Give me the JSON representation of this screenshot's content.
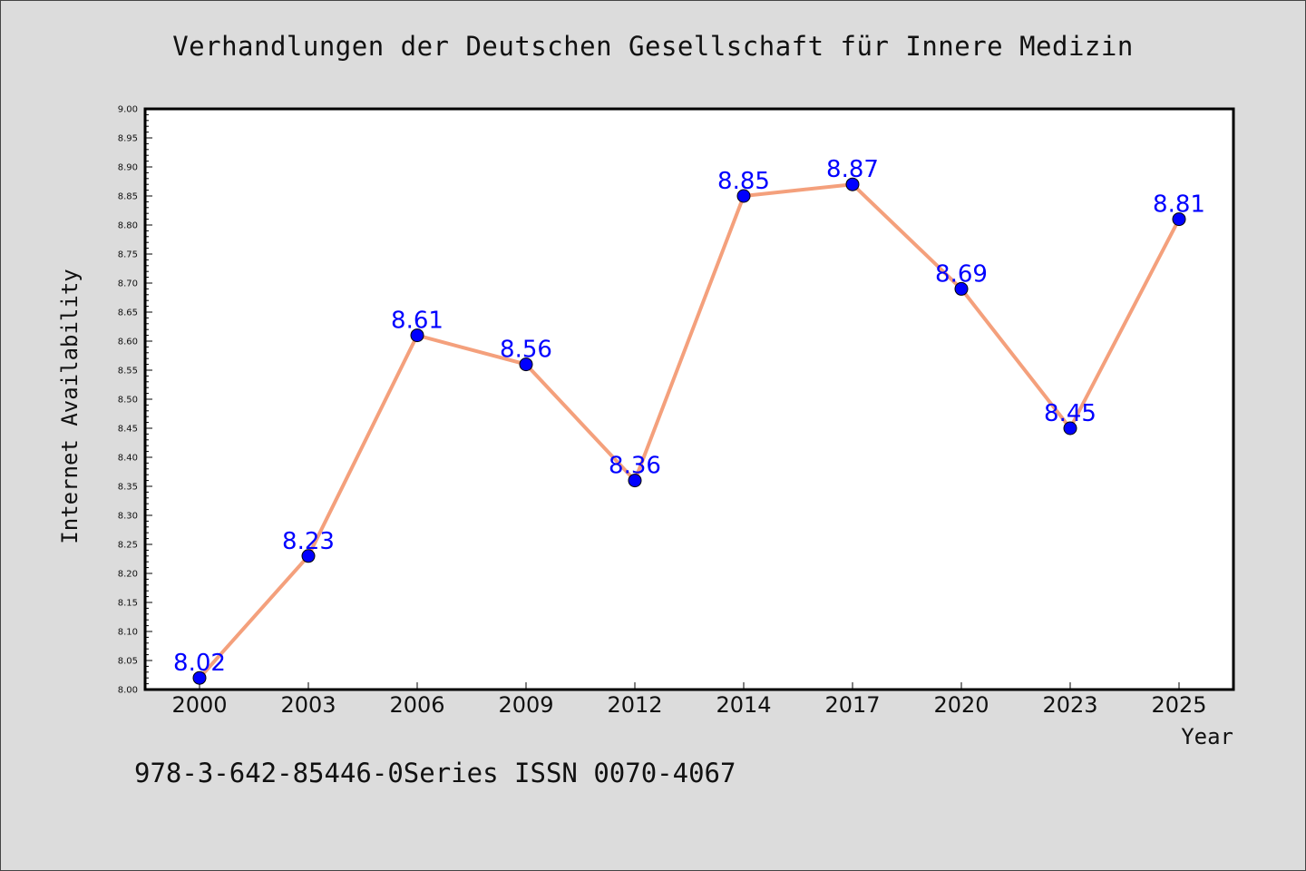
{
  "title": "Verhandlungen der Deutschen Gesellschaft für Innere Medizin",
  "footer": "978-3-642-85446-0Series ISSN 0070-4067",
  "colors": {
    "background": "#dcdcdc",
    "plot_background": "#ffffff",
    "line": "#f4a07c",
    "marker": "#0000ff",
    "data_label": "#0000ff"
  },
  "chart_data": {
    "type": "line",
    "title": "Verhandlungen der Deutschen Gesellschaft für Innere Medizin",
    "xlabel": "Year",
    "ylabel": "Internet Availability",
    "categories": [
      "2000",
      "2003",
      "2006",
      "2009",
      "2012",
      "2014",
      "2017",
      "2020",
      "2023",
      "2025"
    ],
    "series": [
      {
        "values": [
          8.02,
          8.23,
          8.61,
          8.56,
          8.36,
          8.85,
          8.87,
          8.69,
          8.45,
          8.81
        ],
        "data_labels": [
          "8.02",
          "8.23",
          "8.61",
          "8.56",
          "8.36",
          "8.85",
          "8.87",
          "8.69",
          "8.45",
          "8.81"
        ]
      }
    ],
    "ylim": [
      8.0,
      9.0
    ],
    "yticks": [
      "8.00",
      "8.05",
      "8.10",
      "8.15",
      "8.20",
      "8.25",
      "8.30",
      "8.35",
      "8.40",
      "8.45",
      "8.50",
      "8.55",
      "8.60",
      "8.65",
      "8.70",
      "8.75",
      "8.80",
      "8.85",
      "8.90",
      "8.95",
      "9.00"
    ],
    "grid": false,
    "legend": "none"
  }
}
